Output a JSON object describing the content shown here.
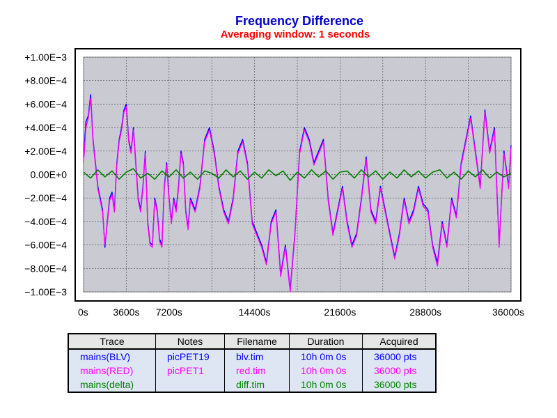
{
  "chart_data": {
    "type": "line",
    "title": "Frequency Difference",
    "subtitle": "Averaging window: 1 seconds",
    "xlim": [
      0,
      36000
    ],
    "ylim": [
      -0.001,
      0.001
    ],
    "x_ticks": [
      0,
      3600,
      7200,
      14400,
      21600,
      28800,
      36000
    ],
    "x_tick_labels": [
      "0s",
      "3600s",
      "7200s",
      "14400s",
      "21600s",
      "28800s",
      "36000s"
    ],
    "x_grid": [
      0,
      3600,
      7200,
      10800,
      14400,
      18000,
      21600,
      25200,
      28800,
      32400,
      36000
    ],
    "y_ticks": [
      0.001,
      0.0008,
      0.0006,
      0.0004,
      0.0002,
      0,
      -0.0002,
      -0.0004,
      -0.0006,
      -0.0008,
      -0.001
    ],
    "y_tick_labels": [
      "+1.00E−3",
      "+8.00E−4",
      "+6.00E−4",
      "+4.00E−4",
      "+2.00E−4",
      "0.00E+0",
      "−2.00E−4",
      "−4.00E−4",
      "−6.00E−4",
      "−8.00E−4",
      "−1.00E−3"
    ],
    "grid": true,
    "series": [
      {
        "name": "mains(BLV)",
        "color": "#0000ff",
        "x": [
          0,
          200,
          400,
          600,
          800,
          1000,
          1200,
          1400,
          1600,
          1800,
          2000,
          2200,
          2400,
          2600,
          2800,
          3000,
          3200,
          3400,
          3600,
          3800,
          4000,
          4200,
          4400,
          4600,
          4800,
          5000,
          5200,
          5400,
          5600,
          5800,
          6000,
          6200,
          6400,
          6600,
          6800,
          7000,
          7200,
          7400,
          7600,
          7800,
          8000,
          8200,
          8400,
          8600,
          8800,
          9000,
          9400,
          9800,
          10200,
          10600,
          11000,
          11400,
          11800,
          12200,
          12600,
          13000,
          13400,
          13800,
          14200,
          14600,
          15000,
          15400,
          15800,
          16200,
          16600,
          17000,
          17400,
          17800,
          18200,
          18600,
          19000,
          19400,
          19800,
          20200,
          20600,
          21000,
          21400,
          21800,
          22200,
          22600,
          23000,
          23400,
          23800,
          24200,
          24600,
          25000,
          25400,
          25800,
          26200,
          26600,
          27000,
          27400,
          27800,
          28200,
          28600,
          29000,
          29400,
          29800,
          30200,
          30600,
          31000,
          31400,
          31800,
          32200,
          32600,
          33000,
          33400,
          33800,
          34200,
          34600,
          35000,
          35400,
          35800,
          36000
        ],
        "y": [
          0.00015,
          0.00045,
          0.0005,
          0.00068,
          0.0003,
          0.0001,
          -0.0001,
          -0.0002,
          -0.0003,
          -0.00062,
          -0.0004,
          -0.0002,
          -0.00015,
          -0.0003,
          0.0001,
          0.0003,
          0.0004,
          0.00055,
          0.0006,
          0.0003,
          0.0002,
          0.0004,
          0.0001,
          -0.0002,
          -0.0003,
          -0.0001,
          0.0002,
          -0.0004,
          -0.00058,
          -0.0006,
          -0.0002,
          -0.0003,
          -0.00055,
          -0.0006,
          -0.0001,
          0.0001,
          -0.0002,
          -0.0004,
          -0.0002,
          -0.0003,
          -0.0001,
          0.0002,
          0.0001,
          -0.0003,
          -0.00045,
          -0.0002,
          -0.0003,
          -0.0001,
          0.0003,
          0.0004,
          0.0002,
          -0.0001,
          -0.0003,
          -0.0004,
          -0.0002,
          0.0002,
          0.0003,
          0.0001,
          -0.0004,
          -0.0005,
          -0.0006,
          -0.00075,
          -0.0004,
          -0.0003,
          -0.00085,
          -0.0006,
          -0.00098,
          -0.0005,
          0.0002,
          0.0004,
          0.0003,
          0.0001,
          0.0002,
          0.0003,
          -0.0002,
          -0.0005,
          -0.0003,
          -0.0001,
          -0.0004,
          -0.0006,
          -0.0005,
          -0.0002,
          0.00015,
          -0.0003,
          -0.0004,
          -0.0001,
          -0.0003,
          -0.0005,
          -0.0007,
          -0.0005,
          -0.0002,
          -0.0004,
          -0.0003,
          -0.0001,
          -0.00025,
          -0.0003,
          -0.0006,
          -0.00075,
          -0.0004,
          -0.0006,
          -0.0002,
          -0.00035,
          0.0001,
          0.0003,
          0.0005,
          0.0002,
          -0.0001,
          0.00055,
          0.0002,
          0.0004,
          -0.0006,
          0.0002,
          -0.0001,
          0.00025
        ]
      },
      {
        "name": "mains(RED)",
        "color": "#ff00ff",
        "x": [
          0,
          200,
          400,
          600,
          800,
          1000,
          1200,
          1400,
          1600,
          1800,
          2000,
          2200,
          2400,
          2600,
          2800,
          3000,
          3200,
          3400,
          3600,
          3800,
          4000,
          4200,
          4400,
          4600,
          4800,
          5000,
          5200,
          5400,
          5600,
          5800,
          6000,
          6200,
          6400,
          6600,
          6800,
          7000,
          7200,
          7400,
          7600,
          7800,
          8000,
          8200,
          8400,
          8600,
          8800,
          9000,
          9400,
          9800,
          10200,
          10600,
          11000,
          11400,
          11800,
          12200,
          12600,
          13000,
          13400,
          13800,
          14200,
          14600,
          15000,
          15400,
          15800,
          16200,
          16600,
          17000,
          17400,
          17800,
          18200,
          18600,
          19000,
          19400,
          19800,
          20200,
          20600,
          21000,
          21400,
          21800,
          22200,
          22600,
          23000,
          23400,
          23800,
          24200,
          24600,
          25000,
          25400,
          25800,
          26200,
          26600,
          27000,
          27400,
          27800,
          28200,
          28600,
          29000,
          29400,
          29800,
          30200,
          30600,
          31000,
          31400,
          31800,
          32200,
          32600,
          33000,
          33400,
          33800,
          34200,
          34600,
          35000,
          35400,
          35800,
          36000
        ],
        "y": [
          0.0001,
          0.0004,
          0.00048,
          0.00065,
          0.00028,
          8e-05,
          -0.00012,
          -0.00022,
          -0.00032,
          -0.0006,
          -0.00042,
          -0.00022,
          -0.00017,
          -0.00032,
          8e-05,
          0.00028,
          0.00038,
          0.00053,
          0.00058,
          0.00028,
          0.00018,
          0.00038,
          8e-05,
          -0.00022,
          -0.00032,
          -0.00012,
          0.00018,
          -0.00042,
          -0.0006,
          -0.00062,
          -0.00022,
          -0.00032,
          -0.00057,
          -0.00062,
          -0.00012,
          8e-05,
          -0.00022,
          -0.00042,
          -0.00022,
          -0.00032,
          -0.00012,
          0.00018,
          8e-05,
          -0.00032,
          -0.00047,
          -0.00022,
          -0.00032,
          -0.00012,
          0.00028,
          0.00038,
          0.00018,
          -0.00012,
          -0.00032,
          -0.00042,
          -0.00022,
          0.00018,
          0.00028,
          8e-05,
          -0.00042,
          -0.00052,
          -0.00062,
          -0.00077,
          -0.00042,
          -0.00032,
          -0.00087,
          -0.00062,
          -0.001,
          -0.00052,
          0.00018,
          0.00038,
          0.00028,
          8e-05,
          0.00018,
          0.00028,
          -0.00022,
          -0.00052,
          -0.00032,
          -0.00012,
          -0.00042,
          -0.00062,
          -0.00052,
          -0.00022,
          0.00013,
          -0.00032,
          -0.00042,
          -0.00012,
          -0.00032,
          -0.00052,
          -0.00072,
          -0.00052,
          -0.00022,
          -0.00042,
          -0.00032,
          -0.00012,
          -0.00027,
          -0.00032,
          -0.00062,
          -0.00078,
          -0.00042,
          -0.00062,
          -0.00022,
          -0.00037,
          8e-05,
          0.00028,
          0.00048,
          0.00018,
          -0.00012,
          0.00053,
          0.00018,
          0.00038,
          -0.00062,
          0.00018,
          -0.00012,
          0.00023
        ]
      },
      {
        "name": "mains(delta)",
        "color": "#008000",
        "x": [
          0,
          600,
          1200,
          1800,
          2400,
          3000,
          3600,
          4200,
          4800,
          5400,
          6000,
          6600,
          7200,
          7800,
          8400,
          9000,
          9600,
          10200,
          10800,
          11400,
          12000,
          12600,
          13200,
          13800,
          14400,
          15000,
          15600,
          16200,
          16800,
          17400,
          18000,
          18600,
          19200,
          19800,
          20400,
          21000,
          21600,
          22200,
          22800,
          23400,
          24000,
          24600,
          25200,
          25800,
          26400,
          27000,
          27600,
          28200,
          28800,
          29400,
          30000,
          30600,
          31200,
          31800,
          32400,
          33000,
          33600,
          34200,
          34800,
          35400,
          36000
        ],
        "y": [
          2e-05,
          -3e-05,
          4e-05,
          -2e-05,
          3e-05,
          -4e-05,
          2e-05,
          5e-05,
          -3e-05,
          1e-05,
          -4e-05,
          3e-05,
          -2e-05,
          4e-05,
          -3e-05,
          2e-05,
          -4e-05,
          3e-05,
          1e-05,
          -3e-05,
          4e-05,
          -2e-05,
          3e-05,
          -4e-05,
          2e-05,
          -3e-05,
          4e-05,
          -1e-05,
          3e-05,
          -5e-05,
          2e-05,
          -3e-05,
          4e-05,
          -2e-05,
          3e-05,
          -4e-05,
          2e-05,
          3e-05,
          -3e-05,
          4e-05,
          -2e-05,
          3e-05,
          -4e-05,
          2e-05,
          -3e-05,
          4e-05,
          -2e-05,
          3e-05,
          -3e-05,
          2e-05,
          4e-05,
          -3e-05,
          2e-05,
          -4e-05,
          3e-05,
          -2e-05,
          4e-05,
          -3e-05,
          2e-05,
          -2e-05,
          1e-05
        ]
      }
    ]
  },
  "legend": {
    "headers": [
      "Trace",
      "Notes",
      "Filename",
      "Duration",
      "Acquired"
    ],
    "rows": [
      {
        "trace": "mains(BLV)",
        "notes": "picPET19",
        "filename": "blv.tim",
        "duration": "10h 0m 0s",
        "acquired": "36000 pts",
        "color": "#0000ff"
      },
      {
        "trace": "mains(RED)",
        "notes": "picPET1",
        "filename": "red.tim",
        "duration": "10h 0m 0s",
        "acquired": "36000 pts",
        "color": "#ff00ff"
      },
      {
        "trace": "mains(delta)",
        "notes": "",
        "filename": "diff.tim",
        "duration": "10h 0m 0s",
        "acquired": "36000 pts",
        "color": "#008000"
      }
    ]
  },
  "colors": {
    "title": "#0000cc",
    "subtitle": "#ff0000",
    "zero_label": "#0000cc",
    "plot_background": "#cacad2"
  }
}
